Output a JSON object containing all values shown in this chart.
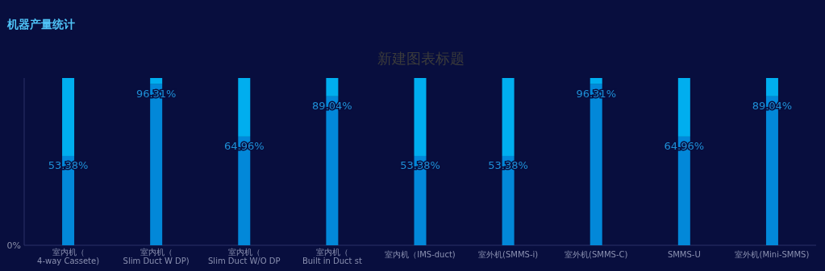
{
  "chart_data": {
    "type": "bar",
    "title": "机器产量统计",
    "subtitle": "新建图表标题",
    "categories": [
      "室内机（4-way Cassete)",
      "室内机（Slim Duct W DP)",
      "室内机（Slim Duct W/O DP",
      "室内机（Built in Duct st",
      "室内机（IMS-duct)",
      "室外机(SMMS-i)",
      "室外机(SMMS-C)",
      "SMMS-U",
      "室外机(Mini-SMMS)"
    ],
    "stacked": true,
    "series": [
      {
        "color": "#0288d9",
        "values": [
          53.38,
          96.31,
          64.96,
          89.04,
          53.38,
          53.38,
          96.31,
          64.96,
          89.04
        ],
        "value_labels": [
          "53.38%",
          "96.31%",
          "64.96%",
          "89.04%",
          "53.38%",
          "53.38%",
          "96.31%",
          "64.96%",
          "89.04%"
        ]
      },
      {
        "color": "#00aeef",
        "values": [
          46.62,
          3.69,
          35.04,
          10.96,
          46.62,
          46.62,
          3.69,
          35.04,
          10.96
        ]
      }
    ],
    "annotations": [
      "0%"
    ]
  }
}
